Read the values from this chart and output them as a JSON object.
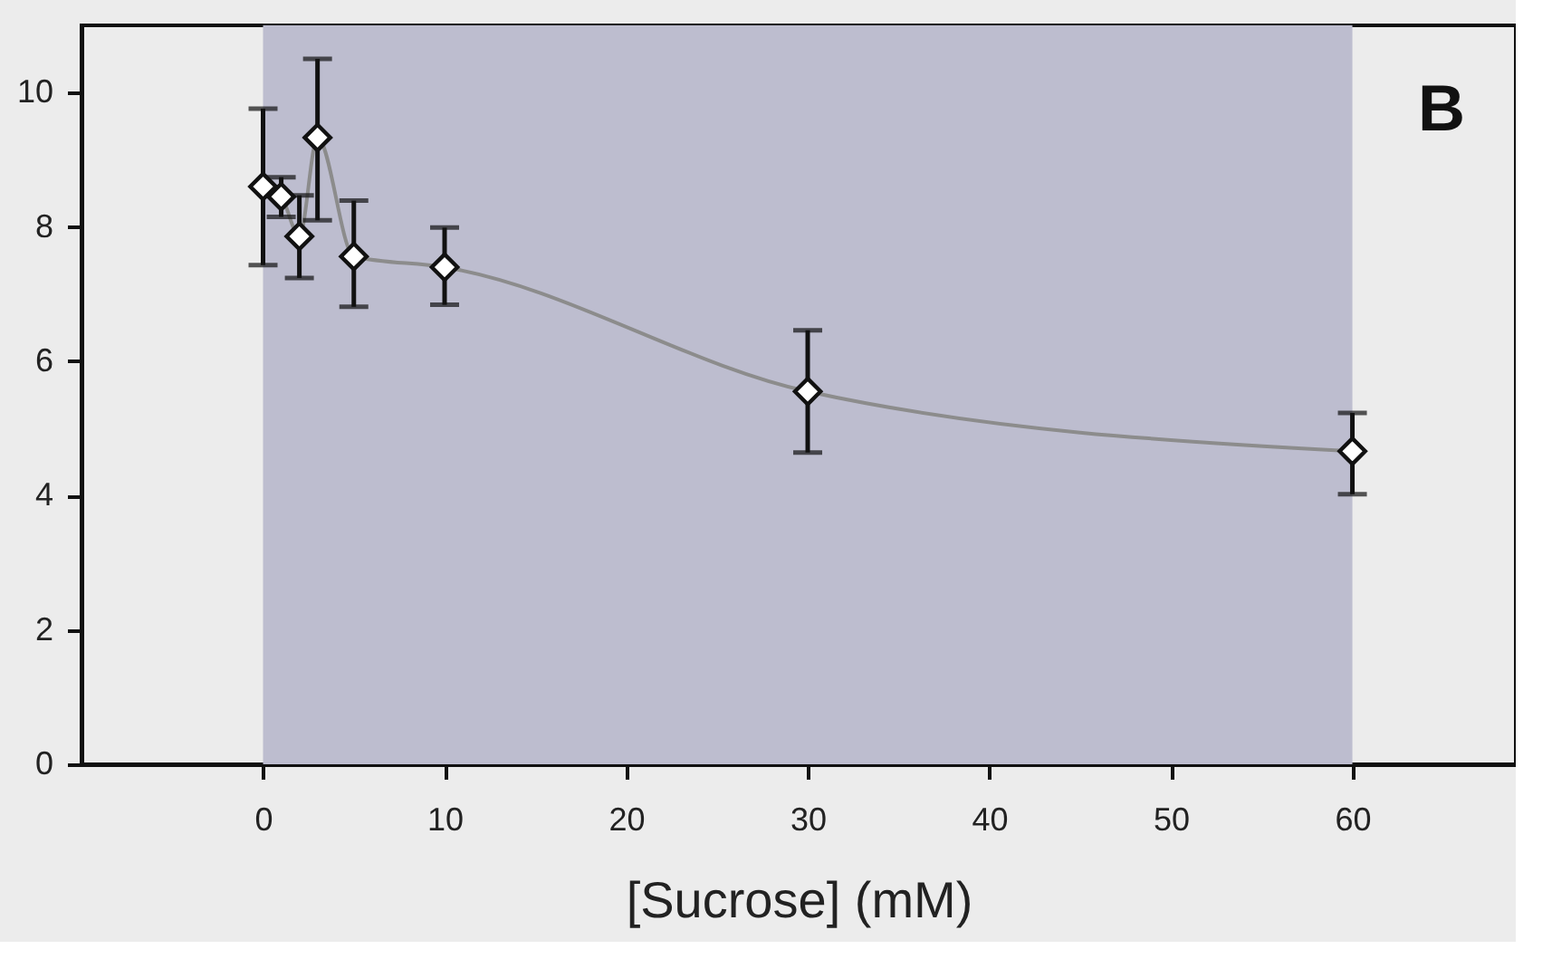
{
  "chart_data": {
    "type": "line",
    "xlabel": "[Sucrose] (mM)",
    "x": [
      0,
      1,
      2,
      3,
      5,
      10,
      30,
      60
    ],
    "series": [
      {
        "color": "#8c8c8c",
        "values": [
          8.6,
          8.45,
          7.86,
          9.33,
          7.56,
          7.4,
          5.55,
          4.66
        ],
        "errors": [
          [
            7.43,
            9.76
          ],
          [
            8.15,
            8.74
          ],
          [
            7.24,
            8.47
          ],
          [
            8.1,
            10.5
          ],
          [
            6.81,
            8.39
          ],
          [
            6.84,
            7.99
          ],
          [
            4.64,
            6.46
          ],
          [
            4.02,
            5.23
          ]
        ]
      }
    ],
    "xlim": [
      -10,
      69
    ],
    "ylim": [
      0,
      11
    ],
    "xticks": [
      0,
      10,
      20,
      30,
      40,
      50,
      60
    ],
    "yticks": [
      0,
      2,
      4,
      6,
      8,
      10
    ],
    "bands": [
      {
        "axis": "x",
        "from": 0,
        "to": 60,
        "color": "#bdbdcf"
      }
    ],
    "annotations": [
      "B"
    ],
    "marker": "diamond",
    "line_style": "solid",
    "grid": false
  }
}
